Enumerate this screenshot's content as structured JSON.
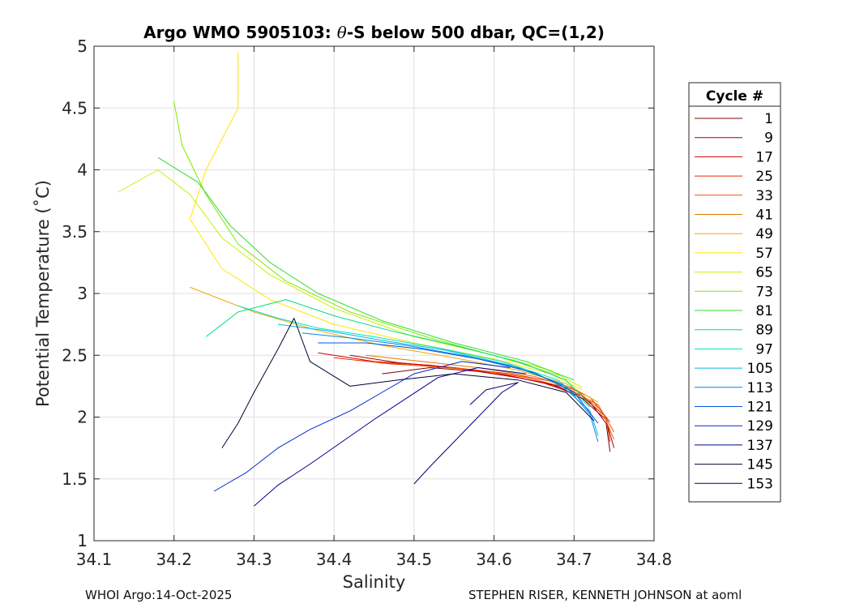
{
  "chart_data": {
    "type": "line",
    "title_prefix": "Argo WMO 5905103: ",
    "title_theta": "θ",
    "title_suffix": "-S below 500 dbar,  QC=(1,2)",
    "xlabel": "Salinity",
    "ylabel": "Potential Temperature (˚C)",
    "xlim": [
      34.1,
      34.8
    ],
    "ylim": [
      1,
      5
    ],
    "xticks": [
      34.1,
      34.2,
      34.3,
      34.4,
      34.5,
      34.6,
      34.7,
      34.8
    ],
    "xtick_labels": [
      "34.1",
      "34.2",
      "34.3",
      "34.4",
      "34.5",
      "34.6",
      "34.7",
      "34.8"
    ],
    "yticks": [
      1,
      1.5,
      2,
      2.5,
      3,
      3.5,
      4,
      4.5,
      5
    ],
    "ytick_labels": [
      "1",
      "1.5",
      "2",
      "2.5",
      "3",
      "3.5",
      "4",
      "4.5",
      "5"
    ],
    "grid": true,
    "legend": {
      "title": "Cycle #",
      "placement": "right",
      "entries": [
        {
          "label": "1",
          "color": "#800000"
        },
        {
          "label": "9",
          "color": "#a80000"
        },
        {
          "label": "17",
          "color": "#d40000"
        },
        {
          "label": "25",
          "color": "#e82a00"
        },
        {
          "label": "33",
          "color": "#f05000"
        },
        {
          "label": "41",
          "color": "#e07a00"
        },
        {
          "label": "49",
          "color": "#f0a800"
        },
        {
          "label": "57",
          "color": "#ffe600"
        },
        {
          "label": "65",
          "color": "#c8f000"
        },
        {
          "label": "73",
          "color": "#80e800"
        },
        {
          "label": "81",
          "color": "#30dc30"
        },
        {
          "label": "89",
          "color": "#00dc80"
        },
        {
          "label": "97",
          "color": "#00e0c0"
        },
        {
          "label": "105",
          "color": "#00b8e8"
        },
        {
          "label": "113",
          "color": "#0088e0"
        },
        {
          "label": "121",
          "color": "#0058e0"
        },
        {
          "label": "129",
          "color": "#0028d0"
        },
        {
          "label": "137",
          "color": "#000090"
        },
        {
          "label": "145",
          "color": "#000030"
        },
        {
          "label": "153",
          "color": "#000070"
        }
      ]
    },
    "series": [
      {
        "name": "1",
        "color": "#800000",
        "points": [
          [
            34.46,
            2.35
          ],
          [
            34.52,
            2.4
          ],
          [
            34.58,
            2.37
          ],
          [
            34.63,
            2.32
          ],
          [
            34.68,
            2.25
          ],
          [
            34.72,
            2.12
          ],
          [
            34.74,
            1.95
          ],
          [
            34.745,
            1.72
          ]
        ]
      },
      {
        "name": "9",
        "color": "#a80000",
        "points": [
          [
            34.42,
            2.5
          ],
          [
            34.48,
            2.44
          ],
          [
            34.55,
            2.4
          ],
          [
            34.62,
            2.33
          ],
          [
            34.67,
            2.27
          ],
          [
            34.71,
            2.15
          ],
          [
            34.74,
            1.98
          ],
          [
            34.75,
            1.75
          ]
        ]
      },
      {
        "name": "17",
        "color": "#d40000",
        "points": [
          [
            34.38,
            2.52
          ],
          [
            34.45,
            2.45
          ],
          [
            34.52,
            2.42
          ],
          [
            34.6,
            2.36
          ],
          [
            34.66,
            2.28
          ],
          [
            34.71,
            2.17
          ],
          [
            34.74,
            2.0
          ],
          [
            34.745,
            1.8
          ]
        ]
      },
      {
        "name": "25",
        "color": "#e82a00",
        "points": [
          [
            34.4,
            2.48
          ],
          [
            34.47,
            2.43
          ],
          [
            34.55,
            2.4
          ],
          [
            34.62,
            2.35
          ],
          [
            34.68,
            2.28
          ],
          [
            34.72,
            2.16
          ],
          [
            34.745,
            1.96
          ]
        ]
      },
      {
        "name": "33",
        "color": "#f05000",
        "points": [
          [
            34.43,
            2.46
          ],
          [
            34.5,
            2.42
          ],
          [
            34.58,
            2.38
          ],
          [
            34.64,
            2.32
          ],
          [
            34.69,
            2.24
          ],
          [
            34.73,
            2.1
          ],
          [
            34.75,
            1.88
          ]
        ]
      },
      {
        "name": "41",
        "color": "#e07a00",
        "points": [
          [
            34.44,
            2.5
          ],
          [
            34.51,
            2.45
          ],
          [
            34.58,
            2.4
          ],
          [
            34.65,
            2.33
          ],
          [
            34.7,
            2.23
          ],
          [
            34.735,
            2.05
          ],
          [
            34.75,
            1.82
          ]
        ]
      },
      {
        "name": "49",
        "color": "#f0a800",
        "points": [
          [
            34.22,
            3.05
          ],
          [
            34.3,
            2.85
          ],
          [
            34.38,
            2.7
          ],
          [
            34.46,
            2.58
          ],
          [
            34.55,
            2.48
          ],
          [
            34.63,
            2.38
          ],
          [
            34.69,
            2.27
          ],
          [
            34.73,
            2.12
          ]
        ]
      },
      {
        "name": "57",
        "color": "#ffe600",
        "points": [
          [
            34.28,
            4.95
          ],
          [
            34.28,
            4.5
          ],
          [
            34.24,
            4.0
          ],
          [
            34.22,
            3.6
          ],
          [
            34.26,
            3.2
          ],
          [
            34.32,
            2.95
          ],
          [
            34.4,
            2.75
          ],
          [
            34.5,
            2.6
          ],
          [
            34.6,
            2.47
          ],
          [
            34.67,
            2.35
          ],
          [
            34.71,
            2.22
          ]
        ]
      },
      {
        "name": "65",
        "color": "#c8f000",
        "points": [
          [
            34.13,
            3.82
          ],
          [
            34.18,
            4.0
          ],
          [
            34.22,
            3.8
          ],
          [
            34.26,
            3.45
          ],
          [
            34.32,
            3.15
          ],
          [
            34.4,
            2.88
          ],
          [
            34.5,
            2.65
          ],
          [
            34.6,
            2.5
          ],
          [
            34.67,
            2.38
          ],
          [
            34.71,
            2.24
          ]
        ]
      },
      {
        "name": "73",
        "color": "#80e800",
        "points": [
          [
            34.2,
            4.55
          ],
          [
            34.21,
            4.2
          ],
          [
            34.24,
            3.8
          ],
          [
            34.28,
            3.4
          ],
          [
            34.34,
            3.1
          ],
          [
            34.42,
            2.85
          ],
          [
            34.52,
            2.64
          ],
          [
            34.61,
            2.48
          ],
          [
            34.68,
            2.34
          ]
        ]
      },
      {
        "name": "81",
        "color": "#30dc30",
        "points": [
          [
            34.18,
            4.1
          ],
          [
            34.23,
            3.9
          ],
          [
            34.27,
            3.55
          ],
          [
            34.32,
            3.25
          ],
          [
            34.38,
            3.0
          ],
          [
            34.46,
            2.78
          ],
          [
            34.55,
            2.6
          ],
          [
            34.64,
            2.45
          ],
          [
            34.7,
            2.3
          ]
        ]
      },
      {
        "name": "89",
        "color": "#00dc80",
        "points": [
          [
            34.24,
            2.65
          ],
          [
            34.28,
            2.85
          ],
          [
            34.34,
            2.95
          ],
          [
            34.4,
            2.82
          ],
          [
            34.47,
            2.7
          ],
          [
            34.55,
            2.58
          ],
          [
            34.63,
            2.45
          ],
          [
            34.69,
            2.3
          ],
          [
            34.72,
            2.1
          ]
        ]
      },
      {
        "name": "97",
        "color": "#00e0c0",
        "points": [
          [
            34.28,
            2.9
          ],
          [
            34.33,
            2.8
          ],
          [
            34.38,
            2.72
          ],
          [
            34.45,
            2.65
          ],
          [
            34.53,
            2.56
          ],
          [
            34.61,
            2.45
          ],
          [
            34.68,
            2.3
          ],
          [
            34.72,
            2.08
          ]
        ]
      },
      {
        "name": "105",
        "color": "#00b8e8",
        "points": [
          [
            34.33,
            2.75
          ],
          [
            34.39,
            2.7
          ],
          [
            34.46,
            2.62
          ],
          [
            34.54,
            2.54
          ],
          [
            34.62,
            2.42
          ],
          [
            34.68,
            2.28
          ],
          [
            34.72,
            2.05
          ],
          [
            34.73,
            1.85
          ]
        ]
      },
      {
        "name": "113",
        "color": "#0088e0",
        "points": [
          [
            34.36,
            2.68
          ],
          [
            34.42,
            2.64
          ],
          [
            34.49,
            2.58
          ],
          [
            34.56,
            2.5
          ],
          [
            34.63,
            2.4
          ],
          [
            34.69,
            2.25
          ],
          [
            34.72,
            2.02
          ],
          [
            34.73,
            1.8
          ]
        ]
      },
      {
        "name": "121",
        "color": "#0058e0",
        "points": [
          [
            34.38,
            2.6
          ],
          [
            34.44,
            2.6
          ],
          [
            34.51,
            2.55
          ],
          [
            34.58,
            2.47
          ],
          [
            34.65,
            2.36
          ],
          [
            34.7,
            2.2
          ],
          [
            34.73,
            1.95
          ]
        ]
      },
      {
        "name": "129",
        "color": "#0028d0",
        "points": [
          [
            34.25,
            1.4
          ],
          [
            34.29,
            1.55
          ],
          [
            34.33,
            1.75
          ],
          [
            34.37,
            1.9
          ],
          [
            34.42,
            2.05
          ],
          [
            34.46,
            2.2
          ],
          [
            34.5,
            2.35
          ],
          [
            34.56,
            2.45
          ],
          [
            34.62,
            2.4
          ]
        ]
      },
      {
        "name": "137",
        "color": "#000090",
        "points": [
          [
            34.3,
            1.28
          ],
          [
            34.33,
            1.45
          ],
          [
            34.37,
            1.62
          ],
          [
            34.41,
            1.8
          ],
          [
            34.45,
            1.98
          ],
          [
            34.49,
            2.15
          ],
          [
            34.53,
            2.32
          ],
          [
            34.58,
            2.4
          ],
          [
            34.64,
            2.35
          ]
        ]
      },
      {
        "name": "145",
        "color": "#000030",
        "points": [
          [
            34.26,
            1.75
          ],
          [
            34.28,
            1.95
          ],
          [
            34.3,
            2.2
          ],
          [
            34.33,
            2.55
          ],
          [
            34.35,
            2.8
          ],
          [
            34.37,
            2.45
          ],
          [
            34.42,
            2.25
          ],
          [
            34.48,
            2.3
          ],
          [
            34.55,
            2.35
          ],
          [
            34.63,
            2.3
          ],
          [
            34.69,
            2.2
          ],
          [
            34.725,
            1.97
          ]
        ]
      },
      {
        "name": "153",
        "color": "#000070",
        "points": [
          [
            34.5,
            1.46
          ],
          [
            34.52,
            1.6
          ],
          [
            34.55,
            1.8
          ],
          [
            34.58,
            2.0
          ],
          [
            34.61,
            2.2
          ],
          [
            34.63,
            2.28
          ],
          [
            34.59,
            2.22
          ],
          [
            34.57,
            2.1
          ]
        ]
      }
    ]
  },
  "footer": {
    "left": "WHOI Argo:14-Oct-2025",
    "right": "STEPHEN RISER, KENNETH JOHNSON at aoml"
  }
}
